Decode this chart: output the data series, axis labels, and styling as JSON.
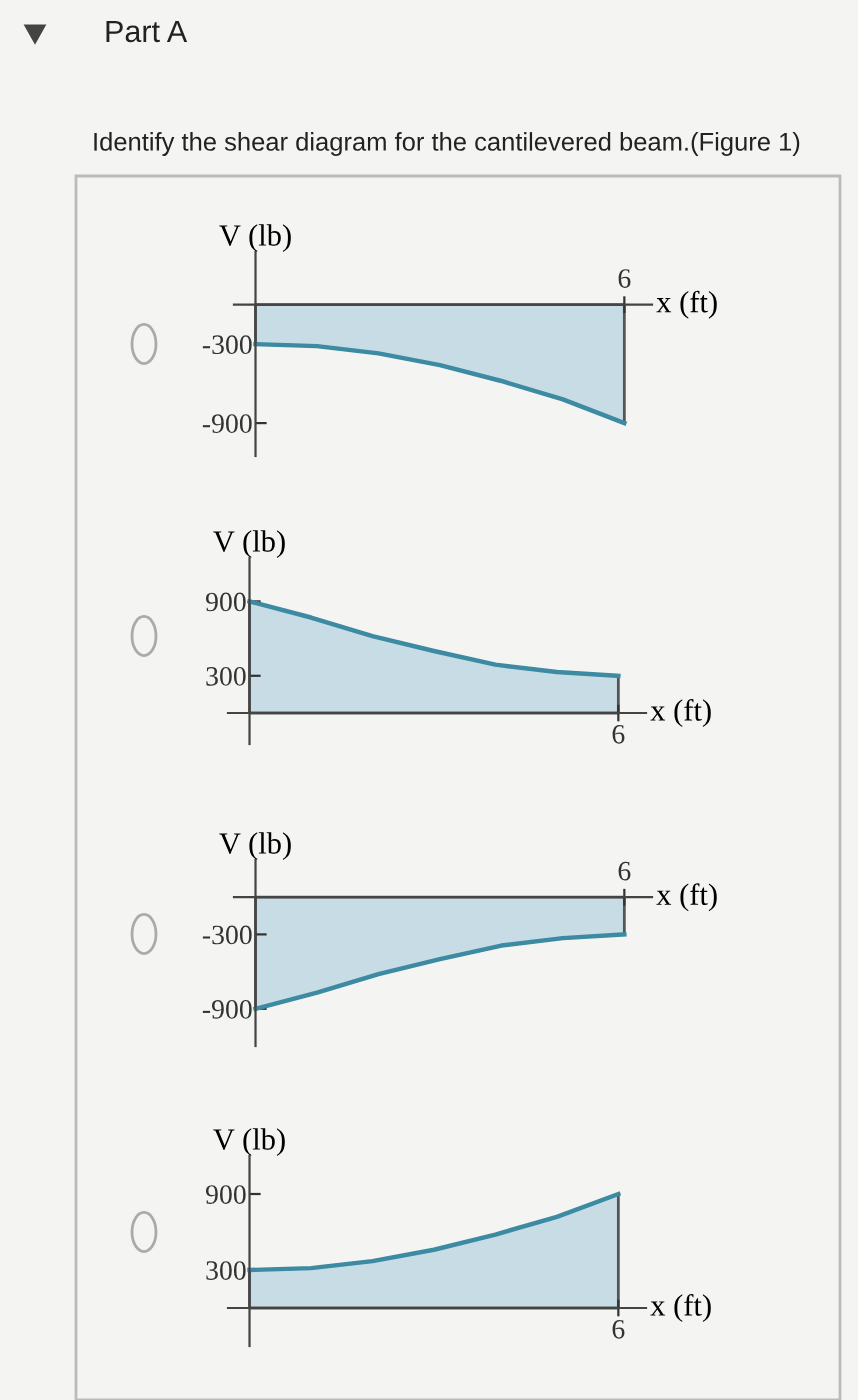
{
  "chart_data": [
    {
      "type": "area",
      "title": "Part A",
      "subtitle": "Identify the shear diagram for the cantilevered beam.(Figure 1)",
      "xlabel": "x (ft)",
      "ylabel": "V (lb)",
      "categories": [
        null,
        null,
        null,
        null,
        null,
        null,
        "6"
      ],
      "series": [
        {
          "color": "#3d8aa3",
          "values": [
            -300,
            -315,
            -370,
            -460,
            -580,
            -720,
            -900
          ]
        }
      ],
      "ylim": [
        -1150,
        400
      ],
      "yticks": [
        -300,
        -900
      ],
      "grid": false,
      "legend": false
    },
    {
      "type": "area",
      "xlabel": "x (ft)",
      "ylabel": "V (lb)",
      "categories": [
        null,
        null,
        null,
        null,
        null,
        null,
        "6"
      ],
      "series": [
        {
          "color": "#3d8aa3",
          "values": [
            900,
            770,
            620,
            500,
            390,
            330,
            300
          ]
        }
      ],
      "ylim": [
        -250,
        1250
      ],
      "yticks": [
        900,
        300
      ],
      "grid": false,
      "legend": false
    },
    {
      "type": "area",
      "xlabel": "x (ft)",
      "ylabel": "V (lb)",
      "categories": [
        null,
        null,
        null,
        null,
        null,
        null,
        "6"
      ],
      "series": [
        {
          "color": "#3d8aa3",
          "values": [
            -900,
            -770,
            -620,
            -500,
            -390,
            -330,
            -300
          ]
        }
      ],
      "ylim": [
        -1200,
        300
      ],
      "yticks": [
        -300,
        -900
      ],
      "grid": false,
      "legend": false
    },
    {
      "type": "area",
      "xlabel": "x (ft)",
      "ylabel": "V (lb)",
      "categories": [
        null,
        null,
        null,
        null,
        null,
        null,
        "6"
      ],
      "series": [
        {
          "color": "#3d8aa3",
          "values": [
            300,
            315,
            370,
            460,
            580,
            720,
            900
          ]
        }
      ],
      "ylim": [
        -300,
        1200
      ],
      "yticks": [
        900,
        300
      ],
      "grid": false,
      "legend": false
    }
  ]
}
